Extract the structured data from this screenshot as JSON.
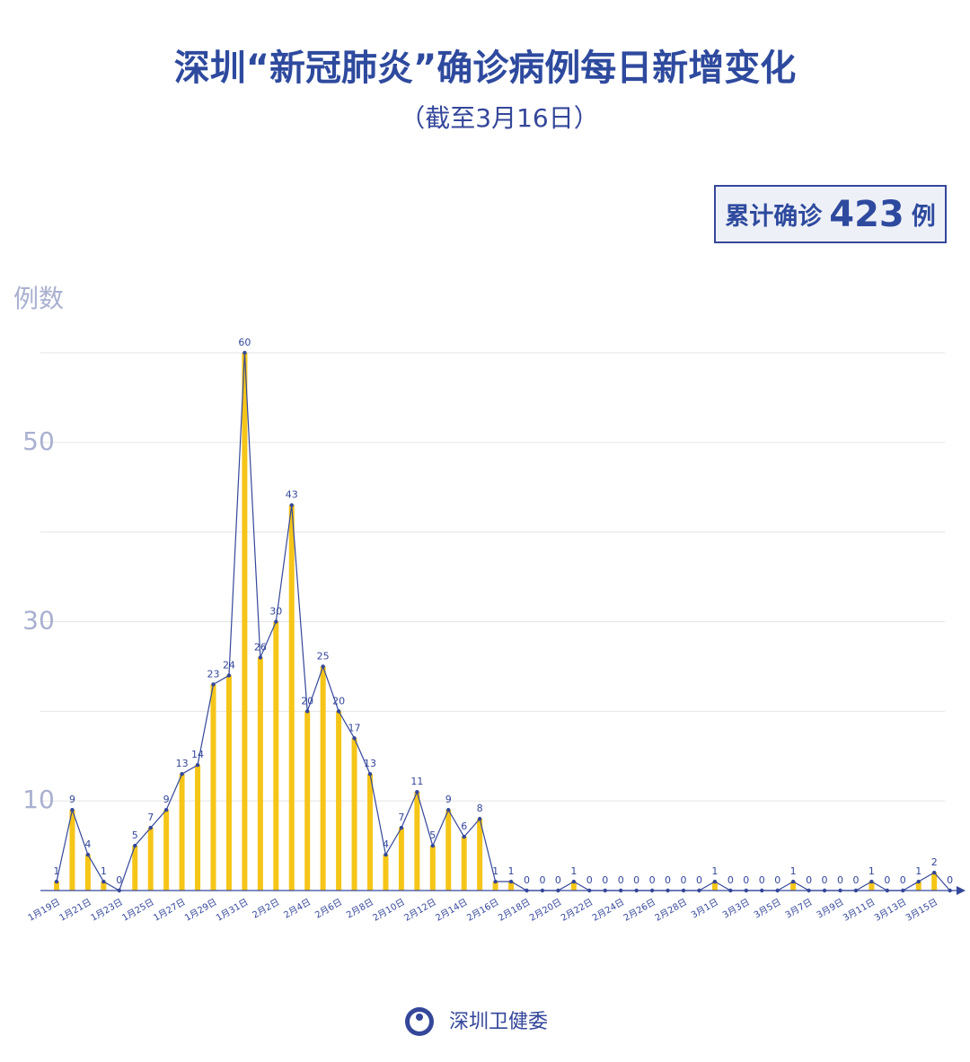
{
  "chart_data": {
    "type": "bar_line",
    "title": "深圳“新冠肺炎”确诊病例每日新增变化",
    "subtitle": "（截至3月16日）",
    "total_label": "累计确诊",
    "total": 423,
    "total_unit": "例",
    "y_label": "例数",
    "source": "深圳卫健委",
    "categories": [
      "1月19日",
      null,
      "1月21日",
      null,
      "1月23日",
      null,
      "1月25日",
      null,
      "1月27日",
      null,
      "1月29日",
      null,
      "1月31日",
      null,
      "2月2日",
      null,
      "2月4日",
      null,
      "2月6日",
      null,
      "2月8日",
      null,
      "2月10日",
      null,
      "2月12日",
      null,
      "2月14日",
      null,
      "2月16日",
      null,
      "2月18日",
      null,
      "2月20日",
      null,
      "2月22日",
      null,
      "2月24日",
      null,
      "2月26日",
      null,
      "2月28日",
      null,
      "3月1日",
      null,
      "3月3日",
      null,
      "3月5日",
      null,
      "3月7日",
      null,
      "3月9日",
      null,
      "3月11日",
      null,
      "3月13日",
      null,
      "3月15日",
      null
    ],
    "values": [
      1,
      9,
      4,
      1,
      0,
      5,
      7,
      9,
      13,
      14,
      23,
      24,
      60,
      26,
      30,
      43,
      20,
      25,
      20,
      17,
      13,
      4,
      7,
      11,
      5,
      9,
      6,
      8,
      1,
      1,
      0,
      0,
      0,
      1,
      0,
      0,
      0,
      0,
      0,
      0,
      0,
      0,
      1,
      0,
      0,
      0,
      0,
      1,
      0,
      0,
      0,
      0,
      1,
      0,
      0,
      1,
      2,
      0
    ],
    "bar_color": "#f5c518",
    "line_color": "#34479a",
    "ylim": [
      0,
      60
    ],
    "yticks": [
      10,
      30,
      50
    ],
    "minor_yticks": [
      20,
      40,
      60
    ],
    "grid": true
  }
}
